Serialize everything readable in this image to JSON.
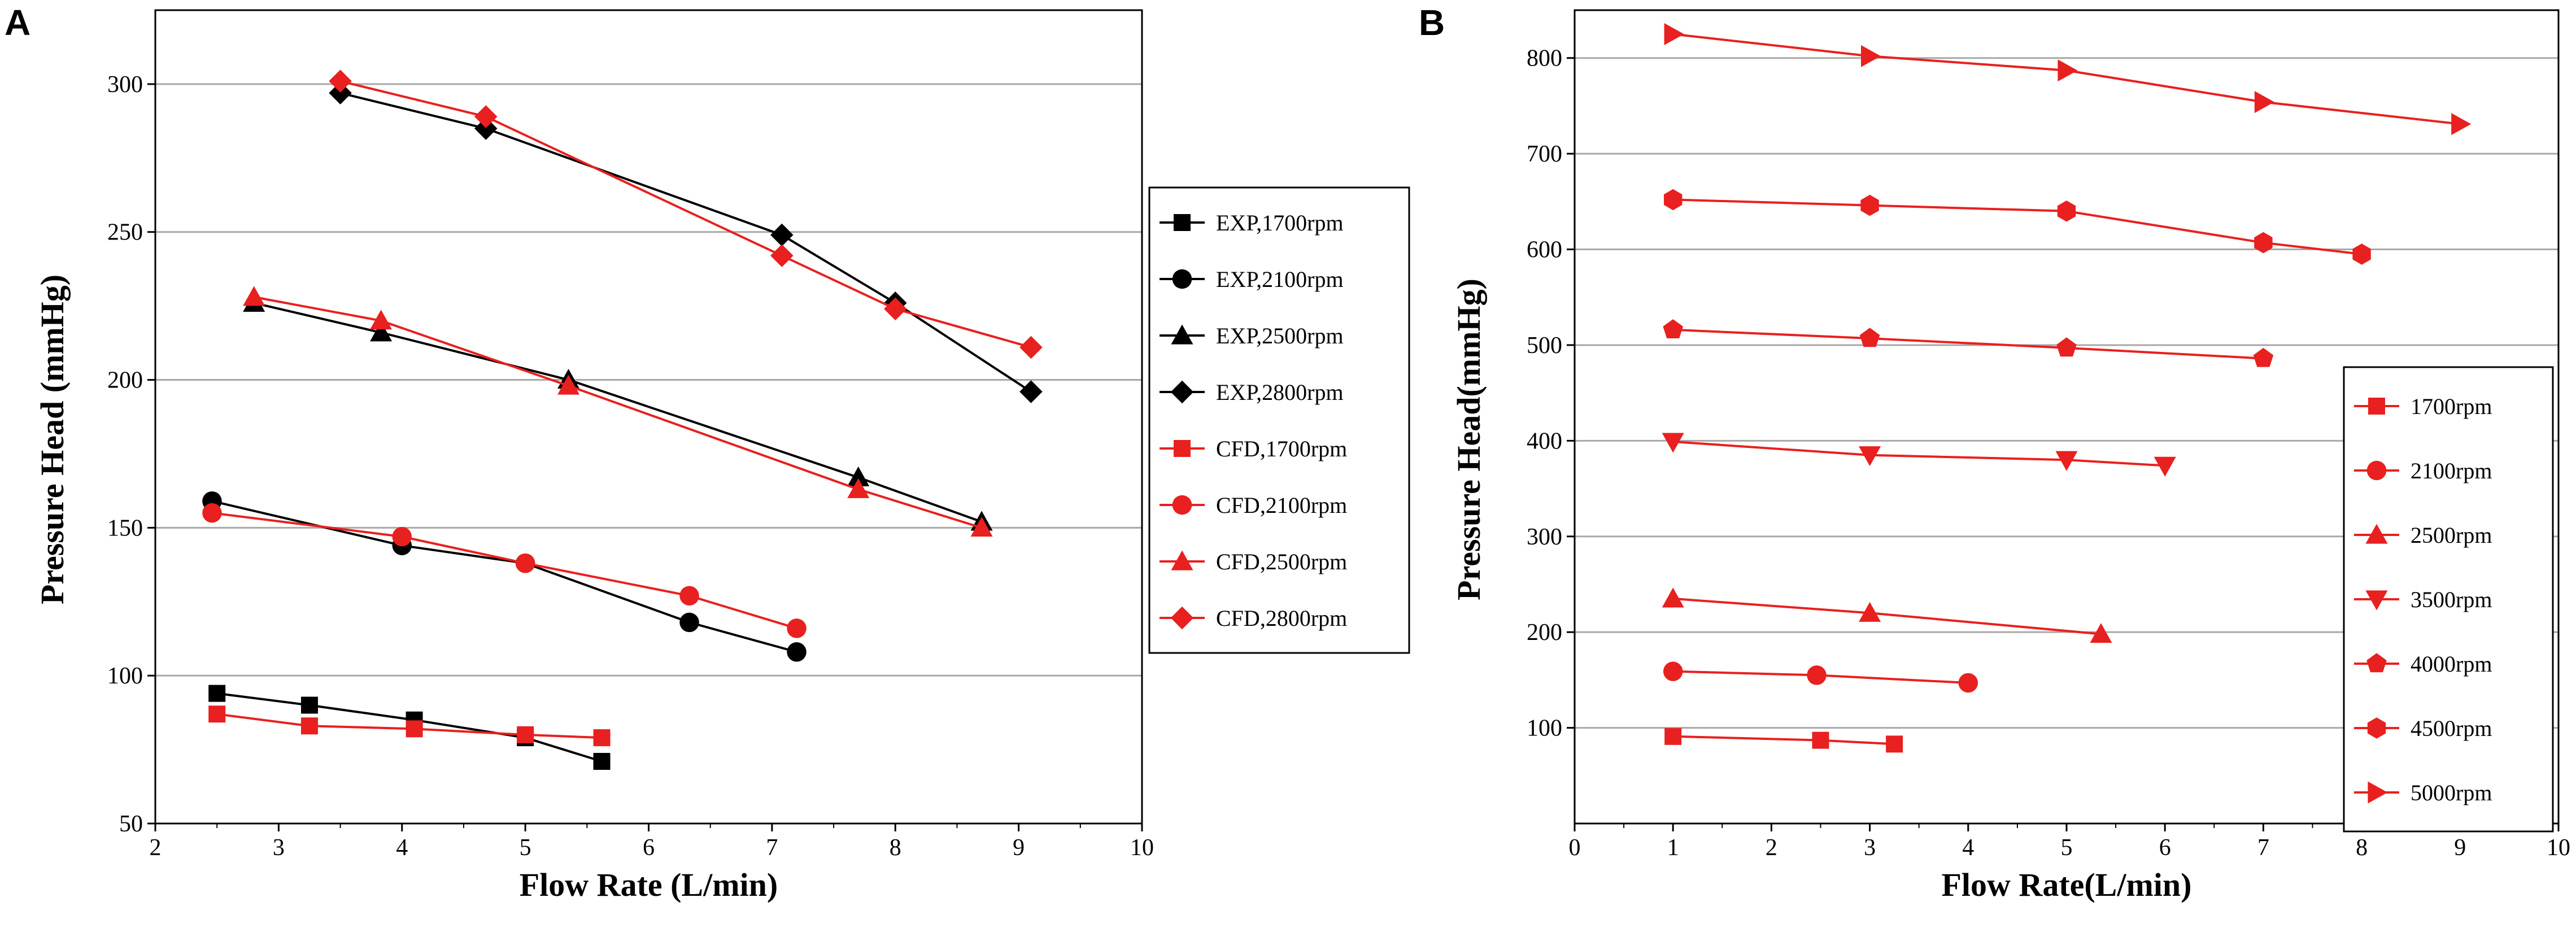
{
  "chart_data": [
    {
      "panel_label": "A",
      "type": "line",
      "xlabel": "Flow Rate (L/min)",
      "ylabel": "Pressure Head (mmHg)",
      "xlim": [
        2,
        10
      ],
      "ylim": [
        50,
        325
      ],
      "x_ticks": [
        "2",
        "3",
        "4",
        "5",
        "6",
        "7",
        "8",
        "9",
        "10"
      ],
      "y_ticks": [
        "50",
        "100",
        "150",
        "200",
        "250",
        "300"
      ],
      "grid": "horizontal",
      "legend_position": "right-outside",
      "series": [
        {
          "name": "EXP,1700rpm",
          "color": "#000000",
          "marker": "square",
          "x": [
            2.5,
            3.25,
            4.1,
            5.0,
            5.62
          ],
          "y": [
            94,
            90,
            85,
            79,
            71
          ]
        },
        {
          "name": "EXP,2100rpm",
          "color": "#000000",
          "marker": "circle",
          "x": [
            2.46,
            4.0,
            5.0,
            6.33,
            7.2
          ],
          "y": [
            159,
            144,
            138,
            118,
            108
          ]
        },
        {
          "name": "EXP,2500rpm",
          "color": "#000000",
          "marker": "triangle-up",
          "x": [
            2.8,
            3.83,
            5.35,
            7.7,
            8.7
          ],
          "y": [
            226,
            216,
            200,
            167,
            152
          ]
        },
        {
          "name": "EXP,2800rpm",
          "color": "#000000",
          "marker": "diamond",
          "x": [
            3.5,
            4.68,
            7.08,
            8.0,
            9.1
          ],
          "y": [
            297,
            285,
            249,
            226,
            196
          ]
        },
        {
          "name": "CFD,1700rpm",
          "color": "#e8201f",
          "marker": "square",
          "x": [
            2.5,
            3.25,
            4.1,
            5.0,
            5.62
          ],
          "y": [
            87,
            83,
            82,
            80,
            79
          ]
        },
        {
          "name": "CFD,2100rpm",
          "color": "#e8201f",
          "marker": "circle",
          "x": [
            2.46,
            4.0,
            5.0,
            6.33,
            7.2
          ],
          "y": [
            155,
            147,
            138,
            127,
            116
          ]
        },
        {
          "name": "CFD,2500rpm",
          "color": "#e8201f",
          "marker": "triangle-up",
          "x": [
            2.8,
            3.83,
            5.35,
            7.7,
            8.7
          ],
          "y": [
            228,
            220,
            198,
            163,
            150
          ]
        },
        {
          "name": "CFD,2800rpm",
          "color": "#e8201f",
          "marker": "diamond",
          "x": [
            3.5,
            4.68,
            7.08,
            8.0,
            9.1
          ],
          "y": [
            301,
            289,
            242,
            224,
            211
          ]
        }
      ]
    },
    {
      "panel_label": "B",
      "type": "line",
      "xlabel": "Flow Rate(L/min)",
      "ylabel": "Pressure Head(mmHg)",
      "xlim": [
        0,
        10
      ],
      "ylim": [
        0,
        850
      ],
      "x_ticks": [
        "0",
        "1",
        "2",
        "3",
        "4",
        "5",
        "6",
        "7",
        "8",
        "9",
        "10"
      ],
      "y_ticks": [
        "100",
        "200",
        "300",
        "400",
        "500",
        "600",
        "700",
        "800"
      ],
      "grid": "horizontal",
      "legend_position": "right-inside",
      "series": [
        {
          "name": "1700rpm",
          "color": "#e8201f",
          "marker": "square",
          "x": [
            1,
            2.5,
            3.25
          ],
          "y": [
            91,
            87,
            83
          ]
        },
        {
          "name": "2100rpm",
          "color": "#e8201f",
          "marker": "circle",
          "x": [
            1,
            2.46,
            4.0
          ],
          "y": [
            159,
            155,
            147
          ]
        },
        {
          "name": "2500rpm",
          "color": "#e8201f",
          "marker": "triangle-up",
          "x": [
            1,
            3.0,
            5.35
          ],
          "y": [
            235,
            220,
            198
          ]
        },
        {
          "name": "3500rpm",
          "color": "#e8201f",
          "marker": "triangle-down",
          "x": [
            1,
            3.0,
            5.0,
            6.0
          ],
          "y": [
            399,
            385,
            380,
            374
          ]
        },
        {
          "name": "4000rpm",
          "color": "#e8201f",
          "marker": "pentagon",
          "x": [
            1,
            3.0,
            5.0,
            7.0
          ],
          "y": [
            516,
            507,
            497,
            486
          ]
        },
        {
          "name": "4500rpm",
          "color": "#e8201f",
          "marker": "hexagon",
          "x": [
            1,
            3.0,
            5.0,
            7.0,
            8.0
          ],
          "y": [
            652,
            646,
            640,
            607,
            595
          ]
        },
        {
          "name": "5000rpm",
          "color": "#e8201f",
          "marker": "triangle-right",
          "x": [
            1,
            3.0,
            5.0,
            7.0,
            9.0
          ],
          "y": [
            825,
            802,
            787,
            754,
            731
          ]
        }
      ]
    }
  ]
}
